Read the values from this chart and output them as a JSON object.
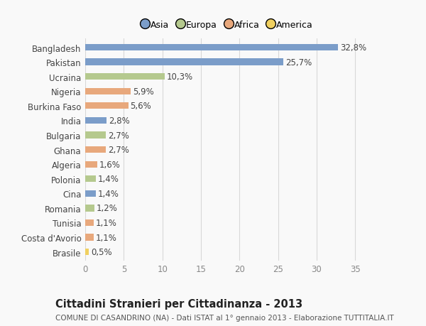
{
  "countries": [
    "Bangladesh",
    "Pakistan",
    "Ucraina",
    "Nigeria",
    "Burkina Faso",
    "India",
    "Bulgaria",
    "Ghana",
    "Algeria",
    "Polonia",
    "Cina",
    "Romania",
    "Tunisia",
    "Costa d'Avorio",
    "Brasile"
  ],
  "values": [
    32.8,
    25.7,
    10.3,
    5.9,
    5.6,
    2.8,
    2.7,
    2.7,
    1.6,
    1.4,
    1.4,
    1.2,
    1.1,
    1.1,
    0.5
  ],
  "labels": [
    "32,8%",
    "25,7%",
    "10,3%",
    "5,9%",
    "5,6%",
    "2,8%",
    "2,7%",
    "2,7%",
    "1,6%",
    "1,4%",
    "1,4%",
    "1,2%",
    "1,1%",
    "1,1%",
    "0,5%"
  ],
  "continents": [
    "Asia",
    "Asia",
    "Europa",
    "Africa",
    "Africa",
    "Asia",
    "Europa",
    "Africa",
    "Africa",
    "Europa",
    "Asia",
    "Europa",
    "Africa",
    "Africa",
    "America"
  ],
  "colors": {
    "Asia": "#7b9dc9",
    "Europa": "#b5c98e",
    "Africa": "#e8a87c",
    "America": "#f0d060"
  },
  "legend_labels": [
    "Asia",
    "Europa",
    "Africa",
    "America"
  ],
  "legend_colors": [
    "#7b9dc9",
    "#b5c98e",
    "#e8a87c",
    "#f0d060"
  ],
  "title": "Cittadini Stranieri per Cittadinanza - 2013",
  "subtitle": "COMUNE DI CASANDRINO (NA) - Dati ISTAT al 1° gennaio 2013 - Elaborazione TUTTITALIA.IT",
  "xlim": [
    0,
    37
  ],
  "xticks": [
    0,
    5,
    10,
    15,
    20,
    25,
    30,
    35
  ],
  "bg_color": "#f9f9f9",
  "grid_color": "#d8d8d8",
  "bar_height": 0.45,
  "label_fontsize": 8.5,
  "tick_fontsize": 8.5,
  "title_fontsize": 10.5,
  "subtitle_fontsize": 7.5
}
